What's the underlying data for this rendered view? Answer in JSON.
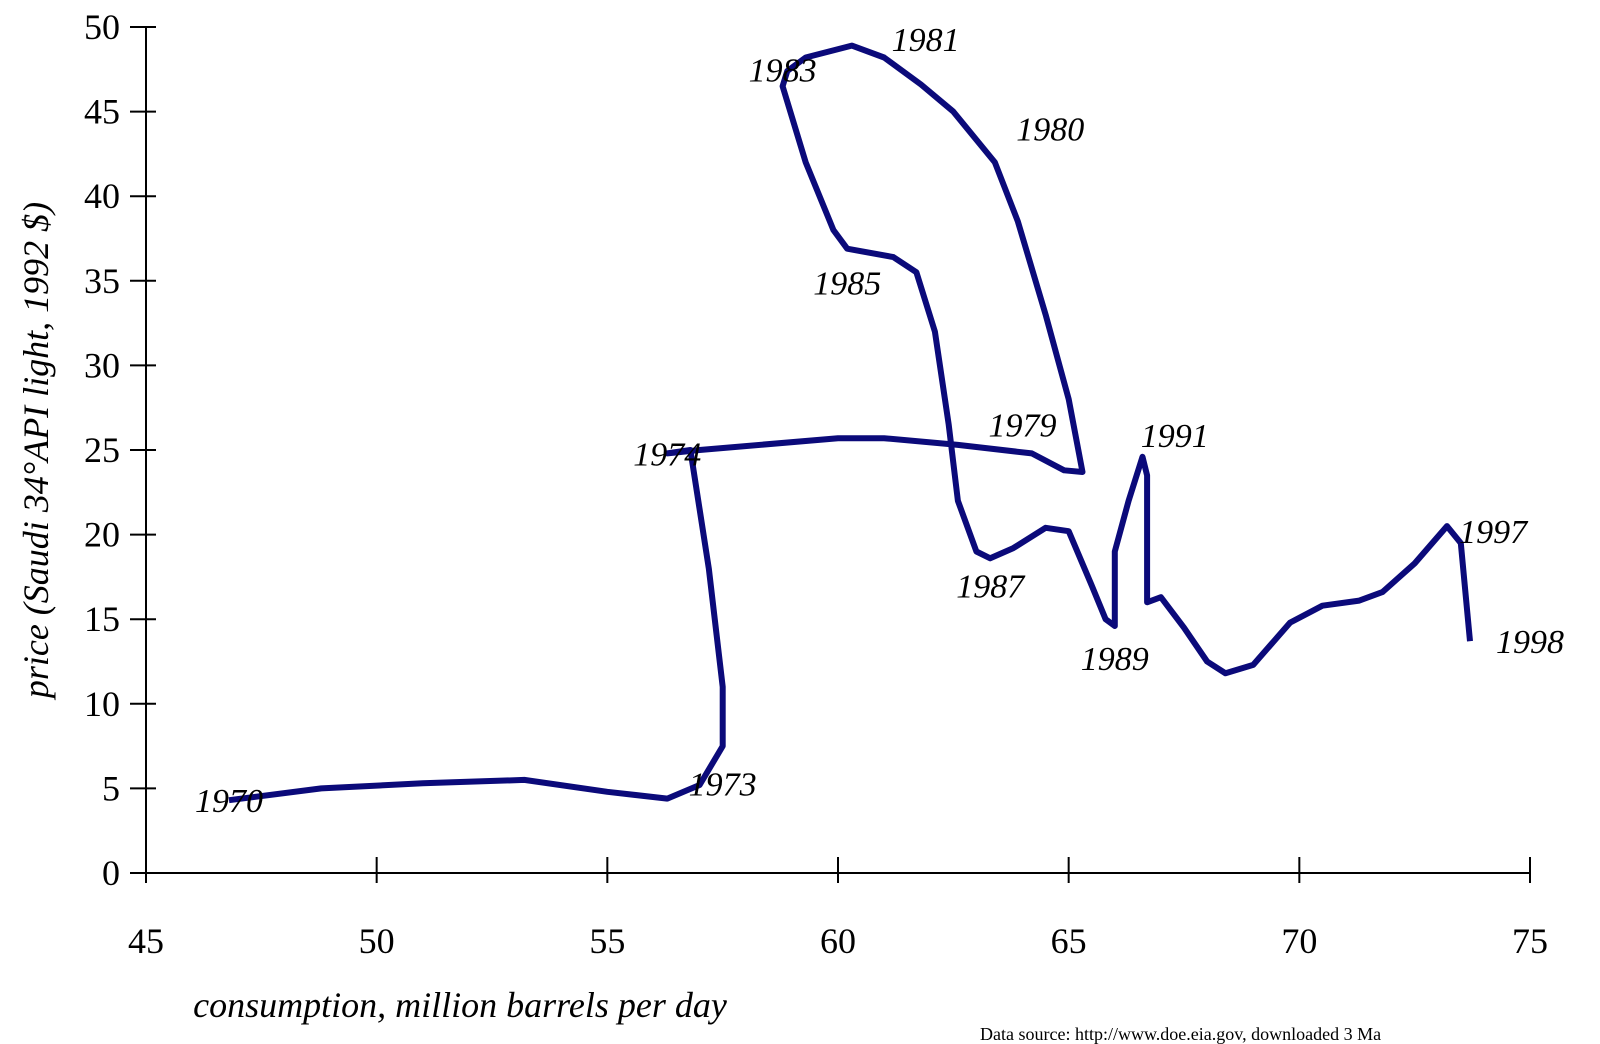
{
  "chart_data": {
    "type": "line",
    "xlabel": "consumption, million barrels per day",
    "ylabel": "price (Saudi 34°API light, 1992 $)",
    "xlim": [
      45,
      75
    ],
    "ylim": [
      0,
      50
    ],
    "x_ticks": [
      45,
      50,
      55,
      60,
      65,
      70,
      75
    ],
    "y_ticks": [
      0,
      5,
      10,
      15,
      20,
      25,
      30,
      35,
      40,
      45,
      50
    ],
    "grid": false,
    "legend": "none",
    "series_color": "#0b0a7a",
    "series": [
      {
        "points": [
          {
            "x": 46.8,
            "y": 4.3,
            "label": "1970"
          },
          {
            "x": 48.8,
            "y": 5.0
          },
          {
            "x": 51.0,
            "y": 5.3
          },
          {
            "x": 53.2,
            "y": 5.5
          },
          {
            "x": 55.0,
            "y": 4.8
          },
          {
            "x": 56.3,
            "y": 4.4
          },
          {
            "x": 57.0,
            "y": 5.2
          },
          {
            "x": 57.5,
            "y": 7.5,
            "label": "1973"
          },
          {
            "x": 57.5,
            "y": 11.0
          },
          {
            "x": 57.2,
            "y": 18.0
          },
          {
            "x": 56.8,
            "y": 25.0
          },
          {
            "x": 56.3,
            "y": 24.8,
            "label": "1974"
          },
          {
            "x": 57.0,
            "y": 25.0
          },
          {
            "x": 60.0,
            "y": 25.7
          },
          {
            "x": 61.0,
            "y": 25.7
          },
          {
            "x": 62.6,
            "y": 25.3
          },
          {
            "x": 64.2,
            "y": 24.8,
            "label": "1979"
          },
          {
            "x": 64.9,
            "y": 23.8
          },
          {
            "x": 65.3,
            "y": 23.7
          },
          {
            "x": 65.0,
            "y": 28.0
          },
          {
            "x": 64.5,
            "y": 33.0
          },
          {
            "x": 63.9,
            "y": 38.5
          },
          {
            "x": 63.4,
            "y": 42.0,
            "label": "1980"
          },
          {
            "x": 62.5,
            "y": 45.0
          },
          {
            "x": 61.8,
            "y": 46.6
          },
          {
            "x": 61.0,
            "y": 48.2,
            "label": "1981"
          },
          {
            "x": 60.3,
            "y": 48.9
          },
          {
            "x": 59.3,
            "y": 48.2
          },
          {
            "x": 58.9,
            "y": 47.4,
            "label": "1983"
          },
          {
            "x": 58.8,
            "y": 46.5
          },
          {
            "x": 59.3,
            "y": 42.0
          },
          {
            "x": 59.9,
            "y": 38.0
          },
          {
            "x": 60.2,
            "y": 36.9,
            "label": "1985"
          },
          {
            "x": 61.2,
            "y": 36.4
          },
          {
            "x": 61.7,
            "y": 35.5
          },
          {
            "x": 62.1,
            "y": 32.0
          },
          {
            "x": 62.4,
            "y": 26.5
          },
          {
            "x": 62.6,
            "y": 22.0
          },
          {
            "x": 63.0,
            "y": 19.0
          },
          {
            "x": 63.3,
            "y": 18.6,
            "label": "1987"
          },
          {
            "x": 63.8,
            "y": 19.2
          },
          {
            "x": 64.5,
            "y": 20.4
          },
          {
            "x": 65.0,
            "y": 20.2
          },
          {
            "x": 65.5,
            "y": 17.0
          },
          {
            "x": 65.8,
            "y": 15.0
          },
          {
            "x": 66.0,
            "y": 14.6,
            "label": "1989"
          },
          {
            "x": 66.0,
            "y": 19.0
          },
          {
            "x": 66.3,
            "y": 22.0
          },
          {
            "x": 66.6,
            "y": 24.6,
            "label": "1991"
          },
          {
            "x": 66.7,
            "y": 23.5
          },
          {
            "x": 66.7,
            "y": 16.0
          },
          {
            "x": 67.0,
            "y": 16.3
          },
          {
            "x": 67.5,
            "y": 14.5
          },
          {
            "x": 68.0,
            "y": 12.5
          },
          {
            "x": 68.4,
            "y": 11.8
          },
          {
            "x": 69.0,
            "y": 12.3
          },
          {
            "x": 69.8,
            "y": 14.8
          },
          {
            "x": 70.5,
            "y": 15.8
          },
          {
            "x": 71.3,
            "y": 16.1
          },
          {
            "x": 71.8,
            "y": 16.6
          },
          {
            "x": 72.5,
            "y": 18.3
          },
          {
            "x": 73.2,
            "y": 20.5,
            "label": "1997"
          },
          {
            "x": 73.5,
            "y": 19.5
          },
          {
            "x": 73.7,
            "y": 13.7,
            "label": "1998"
          }
        ]
      }
    ],
    "annotations": [
      {
        "text": "1970",
        "x": 46.8,
        "y": 4.3
      },
      {
        "text": "1973",
        "x": 57.5,
        "y": 5.3
      },
      {
        "text": "1974",
        "x": 56.3,
        "y": 24.8
      },
      {
        "text": "1979",
        "x": 64.0,
        "y": 26.5
      },
      {
        "text": "1980",
        "x": 64.6,
        "y": 44.0
      },
      {
        "text": "1981",
        "x": 61.9,
        "y": 49.3
      },
      {
        "text": "1983",
        "x": 58.8,
        "y": 47.5
      },
      {
        "text": "1985",
        "x": 60.2,
        "y": 34.9
      },
      {
        "text": "1987",
        "x": 63.3,
        "y": 17.0
      },
      {
        "text": "1989",
        "x": 66.0,
        "y": 12.7
      },
      {
        "text": "1991",
        "x": 67.3,
        "y": 25.9
      },
      {
        "text": "1997",
        "x": 74.2,
        "y": 20.2
      },
      {
        "text": "1998",
        "x": 75.0,
        "y": 13.7
      }
    ],
    "source_note": "Data source:  http://www.doe.eia.gov, downloaded 3 Ma"
  }
}
